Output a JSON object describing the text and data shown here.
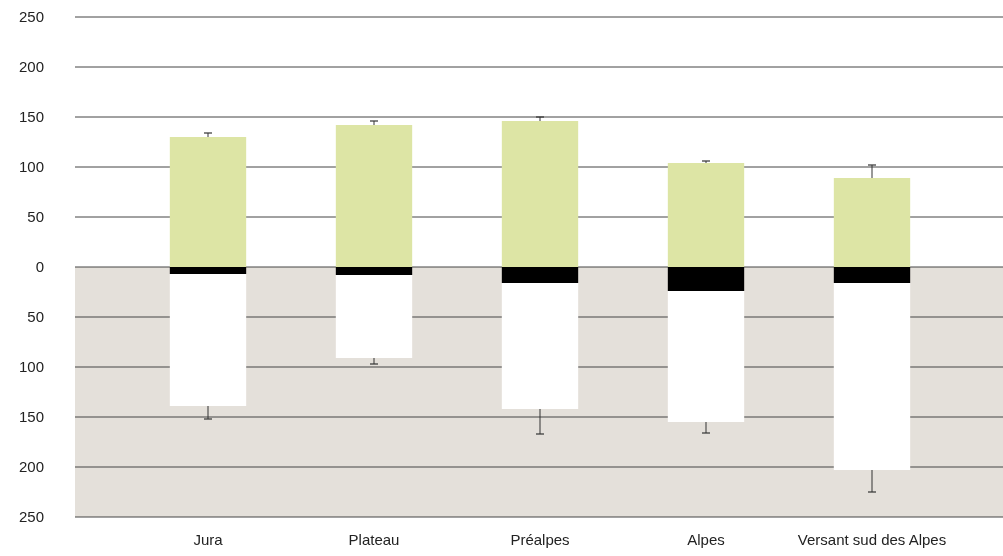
{
  "chart_data": {
    "type": "bar",
    "stacked": true,
    "categories": [
      "Jura",
      "Plateau",
      "Préalpes",
      "Alpes",
      "Versant sud des Alpes"
    ],
    "series": [
      {
        "color": "#dde5a5",
        "values": [
          130,
          142,
          146,
          104,
          89
        ],
        "errors": [
          [
            130,
            134
          ],
          [
            142,
            146
          ],
          [
            146,
            150
          ],
          [
            104,
            106
          ],
          [
            89,
            102
          ]
        ]
      },
      {
        "color": "#000000",
        "values": [
          -7,
          -8,
          -16,
          -24,
          -16
        ]
      },
      {
        "color": "#ffffff",
        "values": [
          -132,
          -83,
          -126,
          -131,
          -187
        ],
        "errors": [
          [
            -152,
            -139
          ],
          [
            -97,
            -91
          ],
          [
            -167,
            -142
          ],
          [
            -166,
            -155
          ],
          [
            -225,
            -203
          ]
        ]
      }
    ],
    "ylim": [
      -250,
      250
    ],
    "yticks": [
      {
        "value": -250,
        "label": "250"
      },
      {
        "value": -200,
        "label": "200"
      },
      {
        "value": -150,
        "label": "150"
      },
      {
        "value": -100,
        "label": "100"
      },
      {
        "value": -50,
        "label": "50"
      },
      0,
      50,
      100,
      150,
      200,
      250
    ],
    "grid": "y",
    "bands": [
      {
        "axis": "y",
        "from": 0,
        "to": -250,
        "color": "#e4e0da"
      }
    ]
  }
}
